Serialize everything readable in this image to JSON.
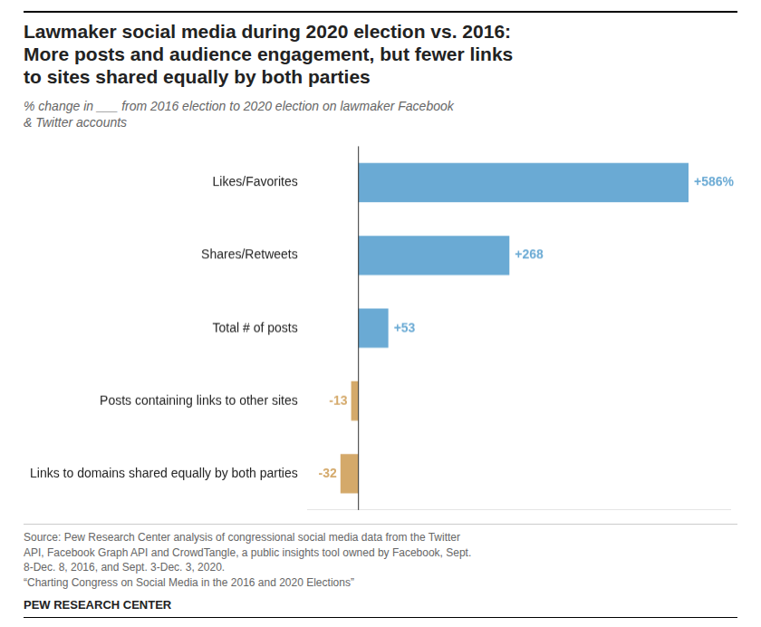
{
  "chart_data": {
    "type": "bar",
    "orientation": "horizontal",
    "title": "Lawmaker social media during 2020 election vs. 2016:\nMore posts and audience engagement, but fewer links\nto sites shared equally by both parties",
    "subtitle": "% change in ___ from 2016 election to 2020 election on lawmaker Facebook\n& Twitter accounts",
    "categories": [
      "Likes/Favorites",
      "Shares/Retweets",
      "Total # of posts",
      "Posts containing links to other sites",
      "Links to domains shared equally by both parties"
    ],
    "values": [
      586,
      268,
      53,
      -13,
      -32
    ],
    "value_labels": [
      "+586%",
      "+268",
      "+53",
      "-13",
      "-32"
    ],
    "colors": [
      "#6aaad4",
      "#6aaad4",
      "#6aaad4",
      "#d4a96a",
      "#d4a96a"
    ],
    "xlim": [
      -90,
      660
    ],
    "tick_labels": "y",
    "grid": false,
    "data_labels": true,
    "annotations": [
      "Source: Pew Research Center analysis of congressional social media data from the Twitter\nAPI, Facebook Graph API and CrowdTangle, a public insights tool owned by Facebook, Sept.\n8-Dec. 8, 2016, and Sept. 3-Dec. 3, 2020.\n“Charting Congress on Social Media in the 2016 and 2020 Elections”",
      "PEW RESEARCH CENTER"
    ]
  }
}
